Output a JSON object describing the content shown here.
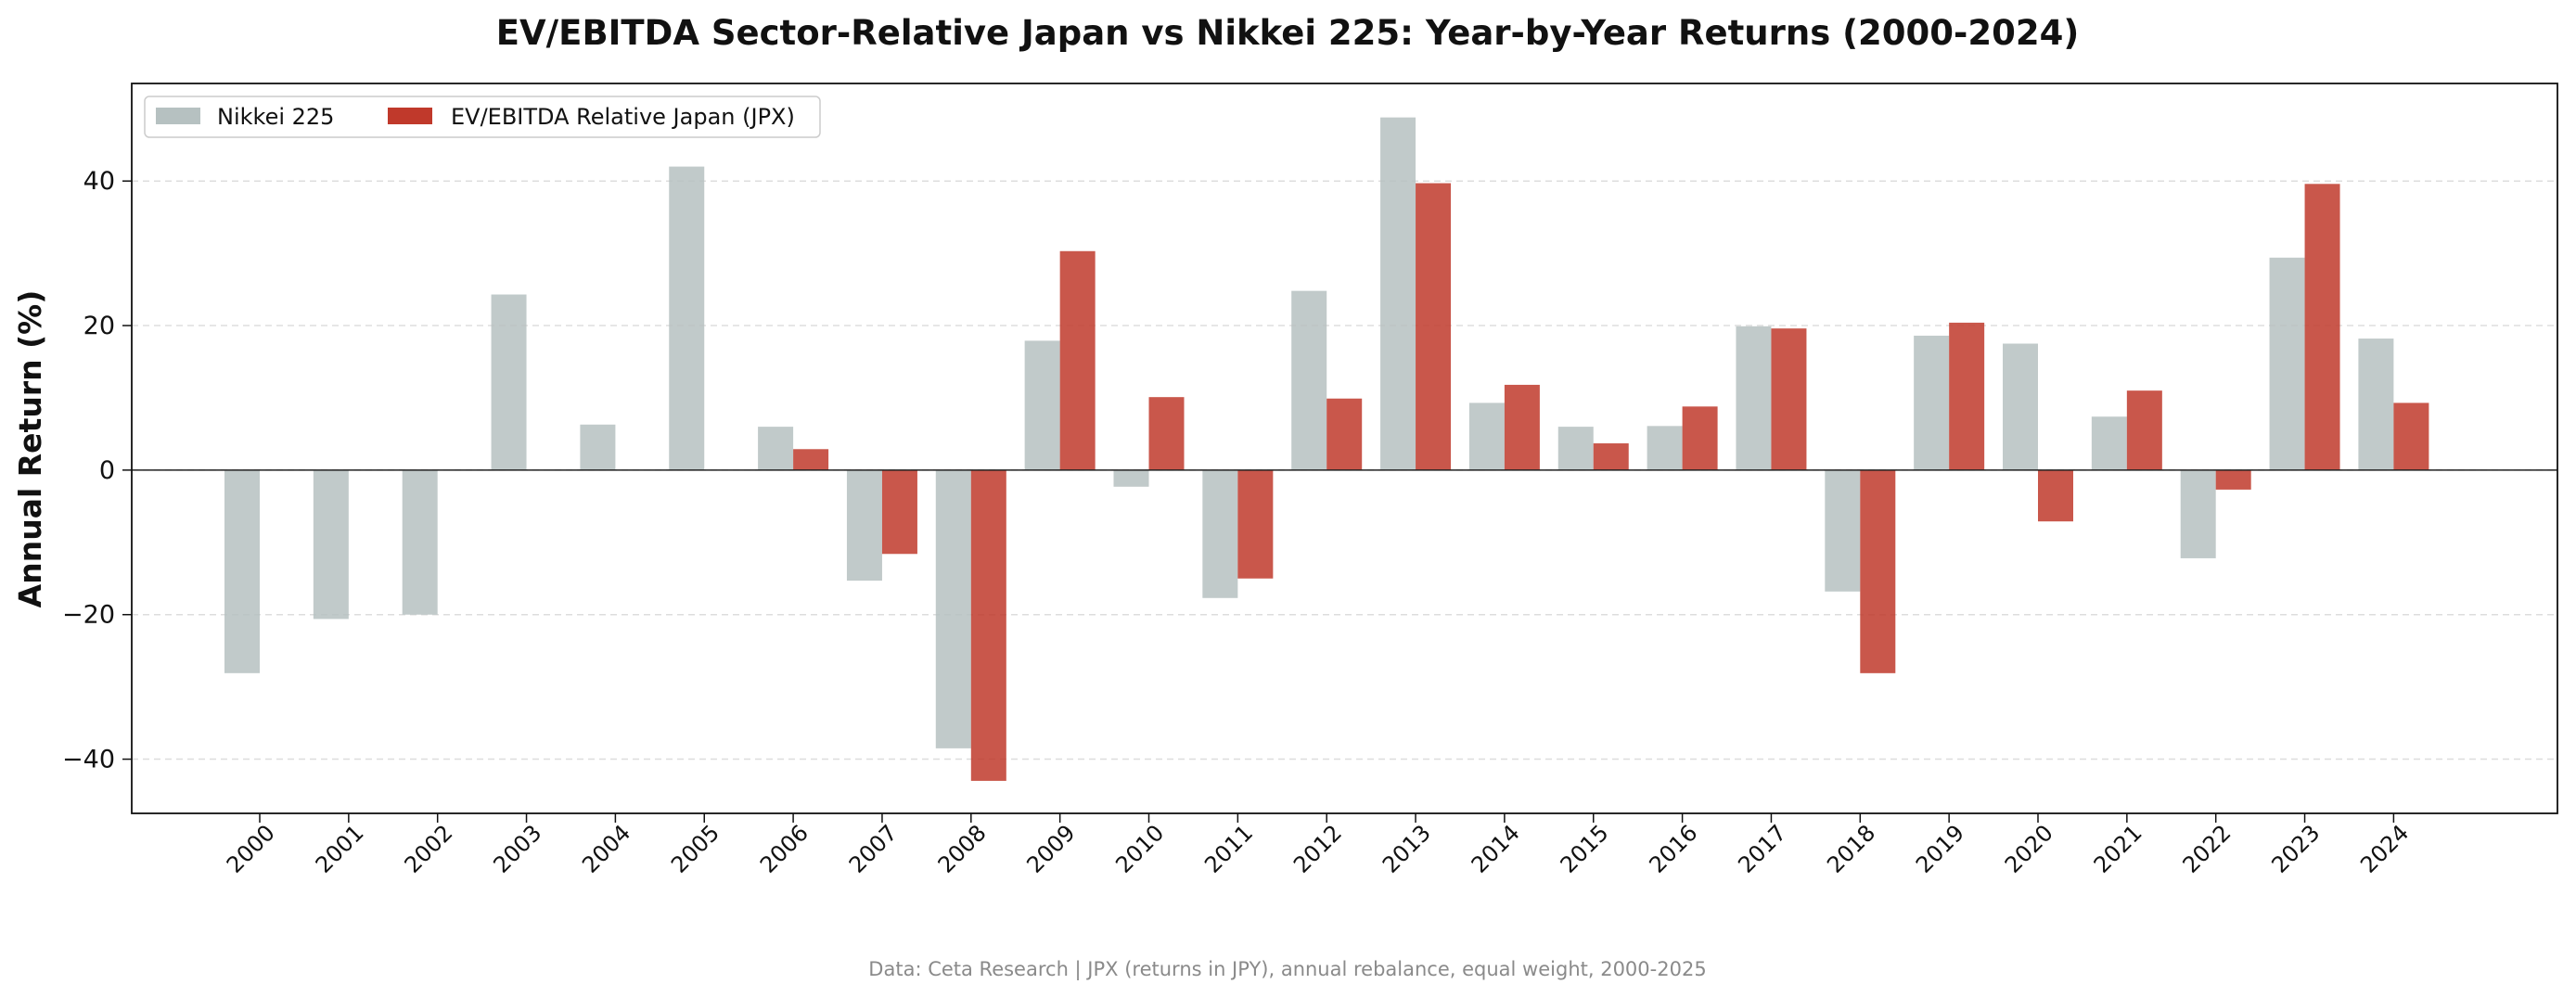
{
  "chart_data": {
    "type": "bar",
    "title": "EV/EBITDA Sector-Relative Japan vs Nikkei 225: Year-by-Year Returns (2000-2024)",
    "ylabel": "Annual Return (%)",
    "xlabel": "",
    "ylim": [
      -47.5,
      53.5
    ],
    "yticks": [
      -40,
      -20,
      0,
      20,
      40
    ],
    "ytick_labels": [
      "−40",
      "−20",
      "0",
      "20",
      "40"
    ],
    "grid": "horizontal dashed",
    "legend_position": "top-left",
    "categories": [
      "2000",
      "2001",
      "2002",
      "2003",
      "2004",
      "2005",
      "2006",
      "2007",
      "2008",
      "2009",
      "2010",
      "2011",
      "2012",
      "2013",
      "2014",
      "2015",
      "2016",
      "2017",
      "2018",
      "2019",
      "2020",
      "2021",
      "2022",
      "2023",
      "2024"
    ],
    "series": [
      {
        "name": "Nikkei 225",
        "color": "#b6c1c1",
        "values": [
          -28.1,
          -20.6,
          -20.0,
          24.3,
          6.3,
          42.0,
          6.0,
          -15.3,
          -38.5,
          17.9,
          -2.3,
          -17.7,
          24.8,
          48.8,
          9.3,
          6.0,
          6.1,
          19.9,
          -16.8,
          18.6,
          17.5,
          7.4,
          -12.2,
          29.4,
          18.2
        ]
      },
      {
        "name": "EV/EBITDA Relative Japan (JPX)",
        "color": "#c0392b",
        "values": [
          null,
          null,
          null,
          null,
          null,
          null,
          2.9,
          -11.6,
          -43.0,
          30.3,
          10.1,
          -15.0,
          9.9,
          39.7,
          11.8,
          3.7,
          8.8,
          19.6,
          -28.1,
          20.4,
          -7.1,
          11.0,
          -2.7,
          39.6,
          9.3
        ]
      }
    ],
    "footnote": "Data: Ceta Research | JPX (returns in JPY), annual rebalance, equal weight, 2000-2025"
  }
}
